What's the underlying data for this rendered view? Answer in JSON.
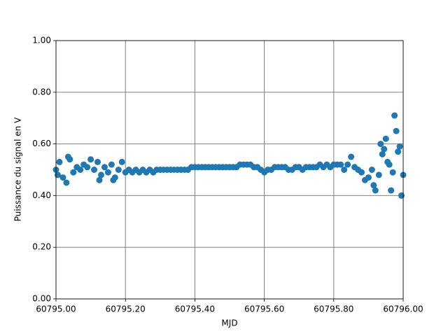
{
  "chart_data": {
    "type": "scatter",
    "x_label": "MJD",
    "y_label": "Puissance du signal en V",
    "color": "#1f77b4",
    "grid": true,
    "xlim": [
      60795.0,
      60796.0
    ],
    "xticks": [
      {
        "value": 60795.0,
        "label": "60795.00"
      },
      {
        "value": 60795.2,
        "label": "60795.20"
      },
      {
        "value": 60795.4,
        "label": "60795.40"
      },
      {
        "value": 60795.6,
        "label": "60795.60"
      },
      {
        "value": 60795.8,
        "label": "60795.80"
      },
      {
        "value": 60796.0,
        "label": "60796.00"
      }
    ],
    "ylim": [
      0,
      1
    ],
    "yticks": [
      {
        "value": 0,
        "label": "0.00"
      },
      {
        "value": 0.2,
        "label": "0.20"
      },
      {
        "value": 0.4,
        "label": "0.40"
      },
      {
        "value": 0.6,
        "label": "0.60"
      },
      {
        "value": 0.8,
        "label": "0.80"
      },
      {
        "value": 1,
        "label": "1.00"
      }
    ],
    "x": [
      60795.0,
      60795.01,
      60795.02,
      60795.03,
      60795.04,
      60795.05,
      60795.06,
      60795.07,
      60795.08,
      60795.09,
      60795.1,
      60795.11,
      60795.12,
      60795.13,
      60795.14,
      60795.15,
      60795.16,
      60795.17,
      60795.18,
      60795.19,
      60795.2,
      60795.21,
      60795.22,
      60795.23,
      60795.24,
      60795.25,
      60795.26,
      60795.27,
      60795.28,
      60795.29,
      60795.3,
      60795.31,
      60795.32,
      60795.33,
      60795.34,
      60795.35,
      60795.36,
      60795.37,
      60795.38,
      60795.39,
      60795.4,
      60795.41,
      60795.42,
      60795.43,
      60795.44,
      60795.45,
      60795.46,
      60795.47,
      60795.48,
      60795.49,
      60795.5,
      60795.51,
      60795.52,
      60795.53,
      60795.54,
      60795.55,
      60795.56,
      60795.57,
      60795.58,
      60795.59,
      60795.6,
      60795.61,
      60795.62,
      60795.63,
      60795.64,
      60795.65,
      60795.66,
      60795.67,
      60795.68,
      60795.69,
      60795.7,
      60795.71,
      60795.72,
      60795.73,
      60795.74,
      60795.75,
      60795.76,
      60795.77,
      60795.78,
      60795.79,
      60795.8,
      60795.81,
      60795.82,
      60795.83,
      60795.84,
      60795.85,
      60795.86,
      60795.87,
      60795.88,
      60795.89,
      60795.9,
      60795.91,
      60795.92,
      60795.93,
      60795.94,
      60795.95,
      60795.96,
      60795.97,
      60795.98,
      60795.99,
      60796.0,
      60795.005,
      60795.035,
      60795.125,
      60795.165,
      60795.915,
      60795.935,
      60795.945,
      60795.975,
      60795.985,
      60795.995,
      60795.965,
      60795.955
    ],
    "y": [
      0.5,
      0.53,
      0.47,
      0.45,
      0.54,
      0.49,
      0.51,
      0.5,
      0.52,
      0.51,
      0.54,
      0.5,
      0.53,
      0.48,
      0.51,
      0.49,
      0.52,
      0.47,
      0.5,
      0.53,
      0.49,
      0.5,
      0.49,
      0.5,
      0.49,
      0.5,
      0.49,
      0.5,
      0.49,
      0.5,
      0.5,
      0.5,
      0.5,
      0.5,
      0.5,
      0.5,
      0.5,
      0.5,
      0.5,
      0.51,
      0.51,
      0.51,
      0.51,
      0.51,
      0.51,
      0.51,
      0.51,
      0.51,
      0.51,
      0.51,
      0.51,
      0.51,
      0.51,
      0.52,
      0.52,
      0.52,
      0.52,
      0.51,
      0.51,
      0.5,
      0.49,
      0.5,
      0.5,
      0.51,
      0.51,
      0.51,
      0.51,
      0.5,
      0.5,
      0.51,
      0.51,
      0.5,
      0.51,
      0.51,
      0.51,
      0.51,
      0.52,
      0.51,
      0.52,
      0.51,
      0.52,
      0.52,
      0.52,
      0.5,
      0.52,
      0.55,
      0.51,
      0.5,
      0.49,
      0.46,
      0.47,
      0.5,
      0.42,
      0.48,
      0.56,
      0.62,
      0.52,
      0.49,
      0.65,
      0.59,
      0.48,
      0.48,
      0.55,
      0.46,
      0.46,
      0.44,
      0.6,
      0.58,
      0.71,
      0.57,
      0.4,
      0.42,
      0.53
    ]
  }
}
